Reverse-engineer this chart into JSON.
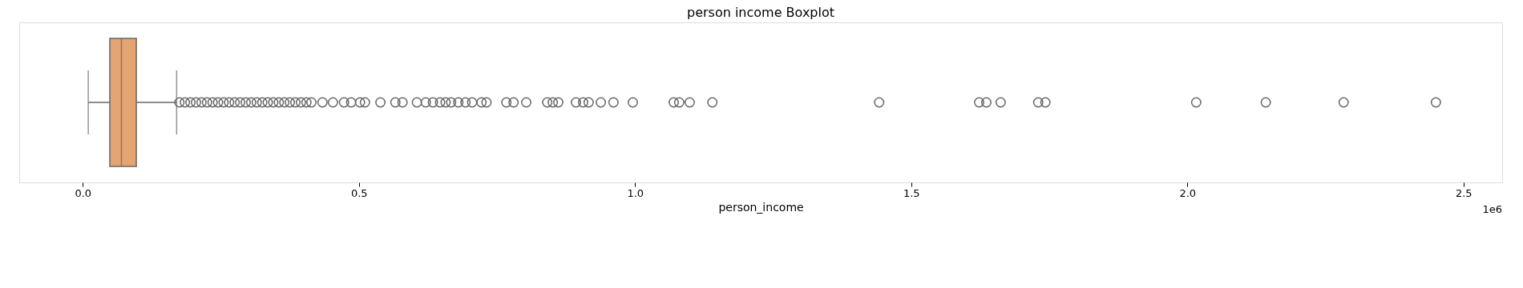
{
  "chart_data": {
    "type": "box",
    "title": "person income Boxplot",
    "xlabel": "person_income",
    "orientation": "horizontal",
    "categories": [
      null
    ],
    "colors": [
      "#e5a572"
    ],
    "boxes": [
      {
        "low": 0.01,
        "q1": 0.049,
        "median": 0.07,
        "q3": 0.097,
        "high": 0.17,
        "outliers": [
          0.175,
          0.185,
          0.195,
          0.205,
          0.215,
          0.225,
          0.235,
          0.245,
          0.255,
          0.265,
          0.275,
          0.285,
          0.295,
          0.305,
          0.315,
          0.325,
          0.335,
          0.345,
          0.355,
          0.365,
          0.375,
          0.385,
          0.395,
          0.405,
          0.414,
          0.434,
          0.453,
          0.473,
          0.486,
          0.502,
          0.511,
          0.539,
          0.566,
          0.579,
          0.605,
          0.621,
          0.634,
          0.647,
          0.657,
          0.667,
          0.68,
          0.693,
          0.705,
          0.722,
          0.731,
          0.767,
          0.78,
          0.803,
          0.841,
          0.851,
          0.861,
          0.893,
          0.906,
          0.916,
          0.938,
          0.961,
          0.996,
          1.07,
          1.08,
          1.099,
          1.14,
          1.442,
          1.623,
          1.636,
          1.662,
          1.73,
          1.743,
          2.016,
          2.142,
          2.283,
          2.45
        ]
      }
    ],
    "xlim": [
      -0.115,
      2.57
    ],
    "xticks": [
      {
        "value": 0,
        "label": "0.0"
      },
      {
        "value": 0.5,
        "label": "0.5"
      },
      {
        "value": 1,
        "label": "1.0"
      },
      {
        "value": 1.5,
        "label": "1.5"
      },
      {
        "value": 2,
        "label": "2.0"
      },
      {
        "value": 2.5,
        "label": "2.5"
      }
    ],
    "annotations": [
      "1e6"
    ]
  }
}
